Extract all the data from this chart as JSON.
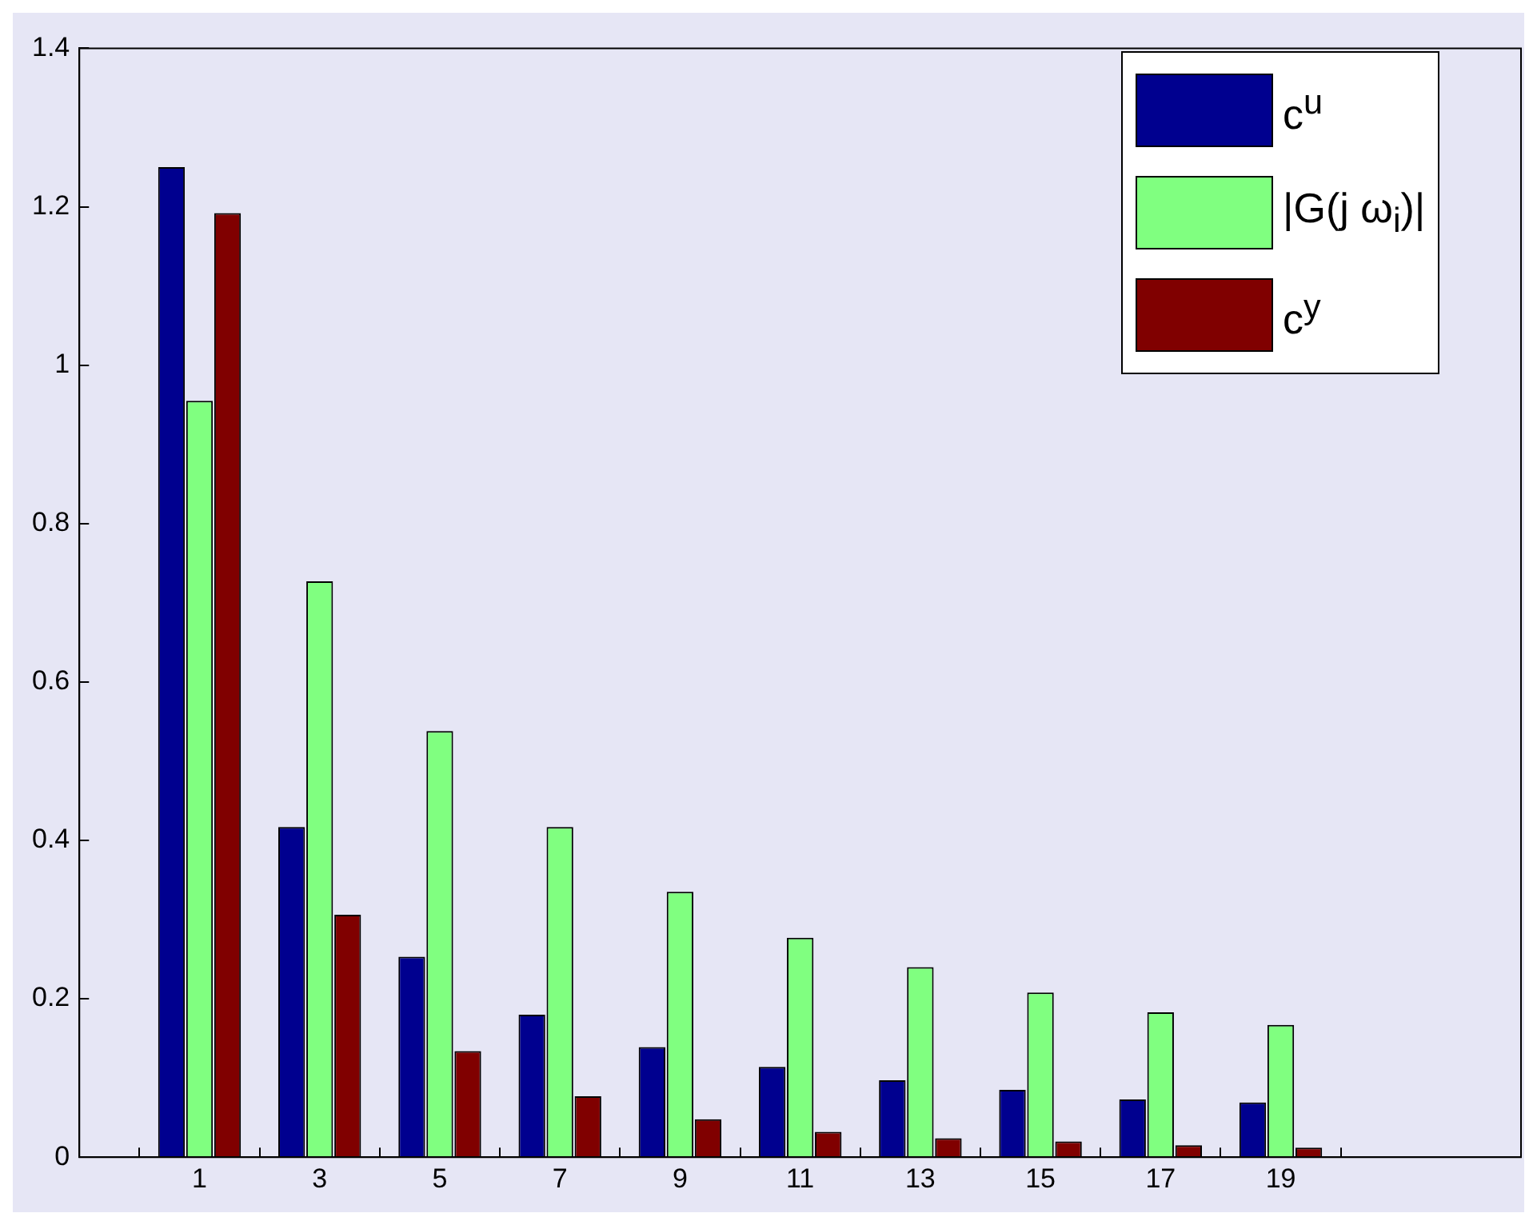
{
  "chart_data": {
    "type": "bar",
    "x": [
      1,
      3,
      5,
      7,
      9,
      11,
      13,
      15,
      17,
      19
    ],
    "xlim": [
      -1,
      23
    ],
    "xticks": [
      1,
      3,
      5,
      7,
      9,
      11,
      13,
      15,
      17,
      19
    ],
    "ylim": [
      0,
      1.4
    ],
    "yticks": [
      0,
      0.2,
      0.4,
      0.6,
      0.8,
      1,
      1.2,
      1.4
    ],
    "grid": false,
    "legend": "top right",
    "series": [
      {
        "name": "c$^{u}$",
        "color": "#00008f",
        "values": [
          1.25,
          0.417,
          0.253,
          0.18,
          0.139,
          0.114,
          0.097,
          0.085,
          0.073,
          0.069
        ]
      },
      {
        "name": "|G(j ω$_{i}$)|",
        "color": "#80ff80",
        "values": [
          0.955,
          0.727,
          0.538,
          0.417,
          0.335,
          0.277,
          0.24,
          0.208,
          0.183,
          0.167
        ]
      },
      {
        "name": "c$^{y}$",
        "color": "#800000",
        "values": [
          1.192,
          0.306,
          0.134,
          0.077,
          0.048,
          0.032,
          0.024,
          0.02,
          0.015,
          0.012
        ]
      }
    ]
  }
}
